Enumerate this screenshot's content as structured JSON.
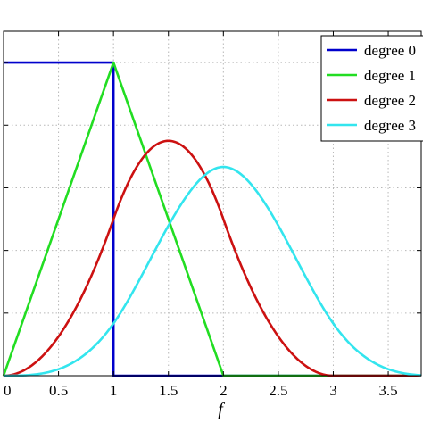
{
  "chart_data": {
    "type": "line",
    "xlabel": "f",
    "ylabel": "",
    "xlim": [
      0,
      3.8
    ],
    "ylim": [
      0,
      1.1
    ],
    "x_ticks": [
      0,
      0.5,
      1,
      1.5,
      2,
      2.5,
      3,
      3.5
    ],
    "x_tick_labels": [
      "0",
      "0.5",
      "1",
      "1.5",
      "2",
      "2.5",
      "3",
      "3.5"
    ],
    "y_ticks": [
      0,
      0.2,
      0.4,
      0.6,
      0.8,
      1.0
    ],
    "grid": true,
    "legend_position": "top-right",
    "series": [
      {
        "name": "degree 0",
        "color": "#0000cc",
        "kind": "bspline-degree-0",
        "x": [
          0,
          1,
          1,
          1.0001,
          3.8
        ],
        "y": [
          1,
          1,
          0,
          0,
          0
        ]
      },
      {
        "name": "degree 1",
        "color": "#22dd22",
        "kind": "bspline-degree-1",
        "x": [
          0,
          1,
          2,
          3.8
        ],
        "y": [
          0,
          1,
          0,
          0
        ]
      },
      {
        "name": "degree 2",
        "color": "#cc1111",
        "kind": "bspline-degree-2",
        "x": [
          0,
          0.5,
          1,
          1.5,
          2,
          2.5,
          3,
          3.8
        ],
        "y": [
          0,
          0.125,
          0.5,
          0.75,
          0.5,
          0.125,
          0,
          0
        ]
      },
      {
        "name": "degree 3",
        "color": "#33e5ee",
        "kind": "bspline-degree-3",
        "x": [
          0,
          0.5,
          1,
          1.5,
          2,
          2.5,
          3,
          3.5,
          3.8
        ],
        "y": [
          0,
          0.0208,
          0.1667,
          0.4792,
          0.6667,
          0.4792,
          0.1667,
          0.0208,
          0.0023
        ]
      }
    ]
  }
}
